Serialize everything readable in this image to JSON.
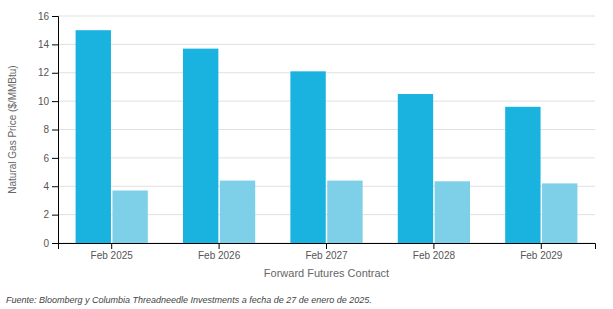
{
  "chart_data": {
    "type": "bar",
    "xlabel": "Forward Futures Contract",
    "ylabel": "Natural Gas Price ($/MMBtu)",
    "footnote": "Fuente: Bloomberg y Columbia Threadneedle Investments a fecha de 27 de enero de 2025.",
    "categories": [
      "Feb 2025",
      "Feb 2026",
      "Feb 2027",
      "Feb 2028",
      "Feb 2029"
    ],
    "series": [
      {
        "color": "#1ab3e0",
        "values": [
          15.0,
          13.7,
          12.1,
          10.5,
          9.6
        ]
      },
      {
        "color": "#7ecfe8",
        "values": [
          3.7,
          4.4,
          4.4,
          4.35,
          4.2
        ]
      }
    ],
    "ylim": [
      0,
      16
    ],
    "yticks": [
      0,
      2,
      4,
      6,
      8,
      10,
      12,
      14,
      16
    ],
    "grid": true
  }
}
